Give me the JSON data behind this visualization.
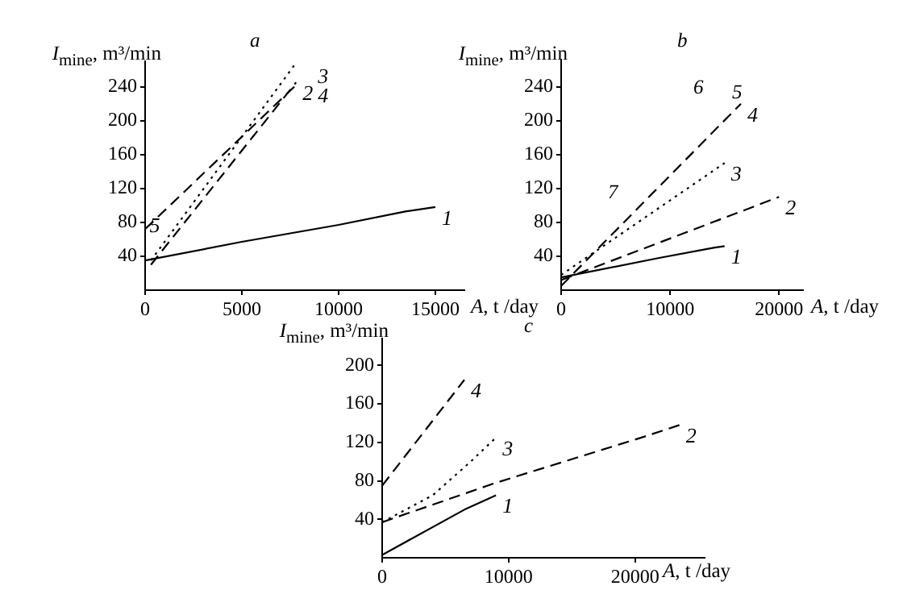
{
  "chart_data": [
    {
      "type": "line",
      "title": "a",
      "xlabel": "A, t /day",
      "ylabel": "I$_{mine}$, m³/min",
      "xlim": [
        0,
        16500
      ],
      "xticks": [
        0,
        5000,
        10000,
        15000
      ],
      "ylim": [
        0,
        270
      ],
      "yticks": [
        40,
        80,
        120,
        160,
        200,
        240
      ],
      "legend": false,
      "marker": "none",
      "series": [
        {
          "name": "1",
          "color": "#000000",
          "line_style": "solid",
          "x": [
            0,
            5000,
            10000,
            13500,
            15000
          ],
          "values": [
            35,
            57,
            77,
            93,
            98
          ]
        },
        {
          "name": "2",
          "color": "#000000",
          "line_style": "dashed",
          "x": [
            300,
            7800
          ],
          "values": [
            30,
            245
          ]
        },
        {
          "name": "3",
          "color": "#000000",
          "line_style": "dotted",
          "x": [
            300,
            7700
          ],
          "values": [
            35,
            265
          ]
        },
        {
          "name": "4",
          "color": "#000000",
          "line_style": "dashed",
          "x": [
            0,
            7800
          ],
          "values": [
            72,
            242
          ]
        }
      ],
      "annotations": [
        {
          "text": "5",
          "x": 500,
          "y": 75
        }
      ]
    },
    {
      "type": "line",
      "title": "b",
      "xlabel": "A, t /day",
      "ylabel": "I$_{mine}$, m³/min",
      "xlim": [
        0,
        22200
      ],
      "xticks": [
        0,
        10000,
        20000
      ],
      "ylim": [
        0,
        272
      ],
      "yticks": [
        40,
        80,
        120,
        160,
        200,
        240
      ],
      "legend": false,
      "marker": "none",
      "series": [
        {
          "name": "1",
          "color": "#000000",
          "line_style": "solid",
          "x": [
            0,
            9000,
            14000,
            15000
          ],
          "values": [
            15,
            38,
            50,
            52
          ]
        },
        {
          "name": "2",
          "color": "#000000",
          "line_style": "dashed",
          "x": [
            0,
            20000
          ],
          "values": [
            12,
            110
          ]
        },
        {
          "name": "3",
          "color": "#000000",
          "line_style": "dotted",
          "x": [
            0,
            15000
          ],
          "values": [
            18,
            150
          ]
        },
        {
          "name": "4",
          "color": "#000000",
          "line_style": "dashed",
          "x": [
            0,
            16500
          ],
          "values": [
            5,
            220
          ]
        }
      ],
      "annotations": [
        "5",
        "6",
        "7"
      ]
    },
    {
      "type": "line",
      "title": "c",
      "xlabel": "A, t /day",
      "ylabel": "I$_{mine}$, m³/min",
      "xlim": [
        0,
        25500
      ],
      "xticks": [
        0,
        10000,
        20000
      ],
      "ylim": [
        0,
        228
      ],
      "yticks": [
        40,
        80,
        120,
        160,
        200
      ],
      "legend": false,
      "marker": "none",
      "series": [
        {
          "name": "1",
          "color": "#000000",
          "line_style": "solid",
          "x": [
            0,
            6500,
            9000
          ],
          "values": [
            3,
            50,
            65
          ]
        },
        {
          "name": "2",
          "color": "#000000",
          "line_style": "dashed",
          "x": [
            0,
            9000,
            20500,
            23500
          ],
          "values": [
            37,
            78,
            125,
            138
          ]
        },
        {
          "name": "3",
          "color": "#000000",
          "line_style": "dotted",
          "x": [
            0,
            4000,
            7000,
            9000
          ],
          "values": [
            37,
            65,
            100,
            125
          ]
        },
        {
          "name": "4",
          "color": "#000000",
          "line_style": "dashed",
          "x": [
            0,
            6500
          ],
          "values": [
            75,
            185
          ]
        }
      ]
    }
  ]
}
